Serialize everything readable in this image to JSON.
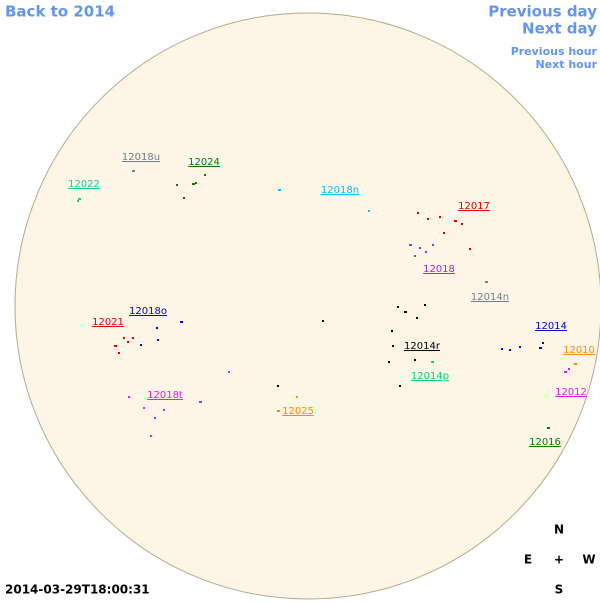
{
  "nav": {
    "back": "Back to 2014",
    "previous_day": "Previous day",
    "next_day": "Next day",
    "previous_hour": "Previous hour",
    "next_hour": "Next hour"
  },
  "timestamp": "2014-03-29T18:00:31",
  "compass": {
    "north": "N",
    "east": "E",
    "center": "+",
    "west": "W",
    "south": "S"
  },
  "regions": [
    {
      "label": "12018u",
      "color": "#708090"
    },
    {
      "label": "12024",
      "color": "#008000"
    },
    {
      "label": "12022",
      "color": "#20c8a0"
    },
    {
      "label": "12018n",
      "color": "#00bfff"
    },
    {
      "label": "12017",
      "color": "#e00000"
    },
    {
      "label": "12018",
      "color": "#9932cc"
    },
    {
      "label": "12014n",
      "color": "#708090"
    },
    {
      "label": "12018o",
      "color": "#0000e0"
    },
    {
      "label": "12021",
      "color": "#e00000"
    },
    {
      "label": "12014",
      "color": "#0000e0"
    },
    {
      "label": "12014r",
      "color": "#000000"
    },
    {
      "label": "12010",
      "color": "#ff8c00"
    },
    {
      "label": "12014p",
      "color": "#00d080"
    },
    {
      "label": "12012",
      "color": "#e020e0"
    },
    {
      "label": "12018t",
      "color": "#e020e0"
    },
    {
      "label": "12025",
      "color": "#ff8c00"
    },
    {
      "label": "12016",
      "color": "#008000"
    }
  ]
}
